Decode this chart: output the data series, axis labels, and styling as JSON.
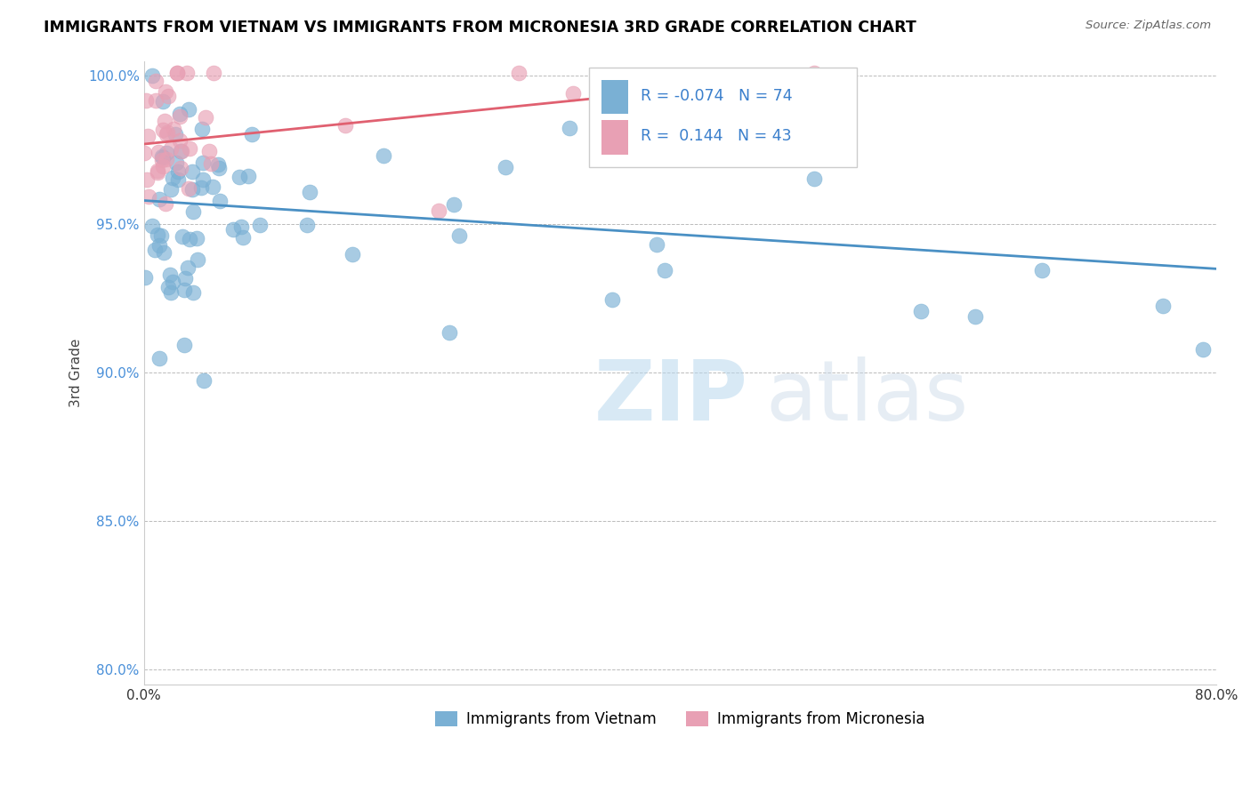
{
  "title": "IMMIGRANTS FROM VIETNAM VS IMMIGRANTS FROM MICRONESIA 3RD GRADE CORRELATION CHART",
  "source": "Source: ZipAtlas.com",
  "ylabel": "3rd Grade",
  "xlim": [
    0.0,
    0.8
  ],
  "ylim": [
    0.795,
    1.005
  ],
  "yticks": [
    0.8,
    0.85,
    0.9,
    0.95,
    1.0
  ],
  "ytick_labels": [
    "80.0%",
    "85.0%",
    "90.0%",
    "95.0%",
    "100.0%"
  ],
  "blue_color": "#7ab0d4",
  "pink_color": "#e8a0b4",
  "blue_line_color": "#4a90c4",
  "pink_line_color": "#e06070",
  "legend_blue_label": "Immigrants from Vietnam",
  "legend_pink_label": "Immigrants from Micronesia",
  "R_blue": -0.074,
  "N_blue": 74,
  "R_pink": 0.144,
  "N_pink": 43,
  "watermark_zip": "ZIP",
  "watermark_atlas": "atlas",
  "blue_line_x0": 0.0,
  "blue_line_y0": 0.958,
  "blue_line_x1": 0.8,
  "blue_line_y1": 0.935,
  "pink_line_x0": 0.0,
  "pink_line_y0": 0.977,
  "pink_line_x1": 0.35,
  "pink_line_y1": 0.993
}
